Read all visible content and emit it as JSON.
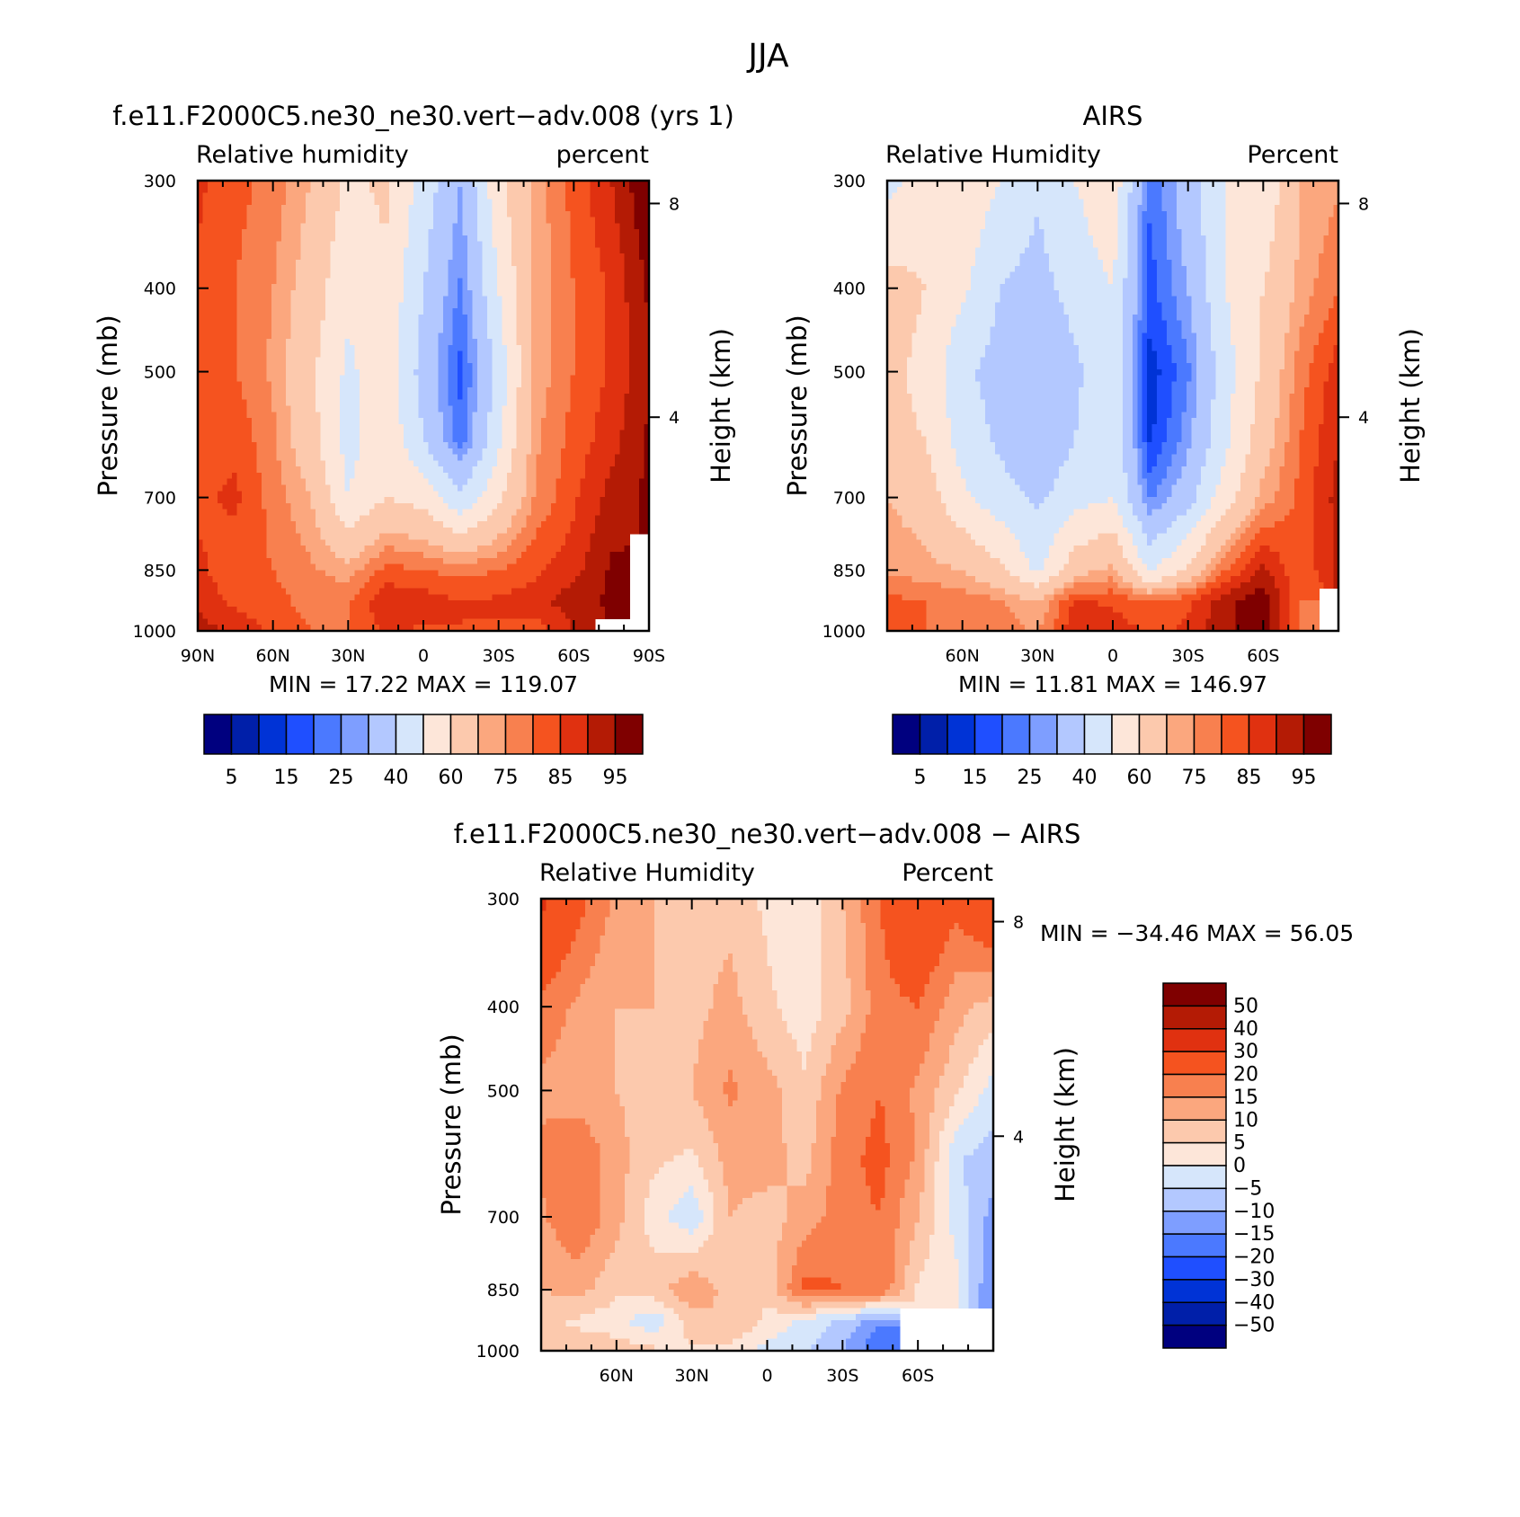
{
  "figure": {
    "title": "JJA"
  },
  "chart_data": [
    {
      "type": "heatmap",
      "title": "f.e11.F2000C5.ne30_ne30.vert−adv.008 (yrs 1)",
      "left_label": "Relative humidity",
      "right_label": "percent",
      "ylabel": "Pressure (mb)",
      "y2label": "Height (km)",
      "x_ticks": [
        "90N",
        "60N",
        "30N",
        "0",
        "30S",
        "60S",
        "90S"
      ],
      "y_ticks": [
        "300",
        "400",
        "500",
        "700",
        "850",
        "1000"
      ],
      "y2_ticks": [
        "8",
        "4"
      ],
      "stats": "MIN =   17.22   MAX = 119.07",
      "levels": [
        5,
        10,
        15,
        20,
        25,
        30,
        40,
        50,
        60,
        70,
        75,
        80,
        85,
        90,
        95
      ],
      "colorbar_labels": [
        "5",
        "15",
        "25",
        "40",
        "60",
        "75",
        "85",
        "95"
      ],
      "colorbar_orientation": "horizontal",
      "xlim": [
        90,
        -90
      ],
      "ylim": [
        1000,
        300
      ],
      "x": [
        90,
        75,
        60,
        45,
        30,
        15,
        0,
        -15,
        -30,
        -45,
        -60,
        -75,
        -90
      ],
      "y": [
        1000,
        925,
        850,
        700,
        600,
        500,
        400,
        300
      ],
      "z": [
        [
          93,
          88,
          84,
          80,
          80,
          86,
          84,
          85,
          84,
          82,
          90,
          -1,
          -1
        ],
        [
          88,
          84,
          82,
          78,
          80,
          89,
          88,
          85,
          86,
          88,
          93,
          96,
          -1
        ],
        [
          86,
          82,
          80,
          76,
          72,
          82,
          80,
          78,
          80,
          84,
          88,
          96,
          -1
        ],
        [
          84,
          86,
          78,
          70,
          50,
          60,
          56,
          42,
          58,
          76,
          84,
          92,
          96
        ],
        [
          82,
          84,
          76,
          64,
          46,
          58,
          40,
          22,
          48,
          74,
          82,
          88,
          96
        ],
        [
          82,
          80,
          74,
          62,
          48,
          56,
          36,
          18,
          44,
          72,
          80,
          86,
          94
        ],
        [
          84,
          80,
          75,
          66,
          52,
          58,
          40,
          24,
          50,
          72,
          80,
          86,
          96
        ],
        [
          86,
          82,
          78,
          70,
          58,
          62,
          46,
          30,
          58,
          72,
          82,
          90,
          100
        ]
      ]
    },
    {
      "type": "heatmap",
      "title": "AIRS",
      "left_label": "Relative Humidity",
      "right_label": "Percent",
      "ylabel": "Pressure (mb)",
      "y2label": "Height (km)",
      "x_ticks": [
        "60N",
        "30N",
        "0",
        "30S",
        "60S"
      ],
      "y_ticks": [
        "300",
        "400",
        "500",
        "700",
        "850",
        "1000"
      ],
      "y2_ticks": [
        "8",
        "4"
      ],
      "stats": "MIN =   11.81   MAX = 146.97",
      "levels": [
        5,
        10,
        15,
        20,
        25,
        30,
        40,
        50,
        60,
        70,
        75,
        80,
        85,
        90,
        95
      ],
      "colorbar_labels": [
        "5",
        "15",
        "25",
        "40",
        "60",
        "75",
        "85",
        "95"
      ],
      "colorbar_orientation": "horizontal",
      "xlim": [
        90,
        -90
      ],
      "ylim": [
        1000,
        300
      ],
      "x": [
        90,
        75,
        60,
        45,
        30,
        15,
        0,
        -15,
        -30,
        -45,
        -60,
        -75,
        -90
      ],
      "y": [
        1000,
        925,
        850,
        700,
        600,
        500,
        400,
        300
      ],
      "z": [
        [
          82,
          80,
          80,
          78,
          74,
          90,
          88,
          84,
          86,
          94,
          98,
          78,
          -1
        ],
        [
          82,
          80,
          78,
          76,
          70,
          86,
          84,
          80,
          84,
          94,
          98,
          80,
          -1
        ],
        [
          74,
          72,
          70,
          62,
          48,
          66,
          72,
          48,
          62,
          80,
          92,
          80,
          92
        ],
        [
          70,
          66,
          52,
          44,
          38,
          46,
          50,
          24,
          36,
          56,
          72,
          82,
          92
        ],
        [
          62,
          60,
          46,
          38,
          32,
          40,
          50,
          14,
          28,
          48,
          66,
          80,
          90
        ],
        [
          62,
          58,
          42,
          36,
          30,
          38,
          48,
          12,
          24,
          46,
          62,
          78,
          88
        ],
        [
          64,
          60,
          52,
          40,
          36,
          44,
          50,
          18,
          30,
          50,
          60,
          72,
          80
        ],
        [
          46,
          56,
          58,
          50,
          42,
          50,
          58,
          20,
          36,
          50,
          52,
          70,
          74
        ]
      ]
    },
    {
      "type": "heatmap",
      "title": "f.e11.F2000C5.ne30_ne30.vert−adv.008 − AIRS",
      "left_label": "Relative Humidity",
      "right_label": "Percent",
      "ylabel": "Pressure (mb)",
      "y2label": "Height (km)",
      "x_ticks": [
        "60N",
        "30N",
        "0",
        "30S",
        "60S"
      ],
      "y_ticks": [
        "300",
        "400",
        "500",
        "700",
        "850",
        "1000"
      ],
      "y2_ticks": [
        "8",
        "4"
      ],
      "stats": "MIN = −34.46   MAX =   56.05",
      "levels": [
        -50,
        -40,
        -30,
        -20,
        -15,
        -10,
        -5,
        0,
        5,
        10,
        15,
        20,
        30,
        40,
        50
      ],
      "colorbar_labels": [
        "50",
        "40",
        "30",
        "20",
        "15",
        "10",
        "5",
        "0",
        "−5",
        "−10",
        "−15",
        "−20",
        "−30",
        "−40",
        "−50"
      ],
      "colorbar_orientation": "vertical",
      "xlim": [
        90,
        -90
      ],
      "ylim": [
        1000,
        300
      ],
      "x": [
        90,
        75,
        60,
        45,
        30,
        15,
        0,
        -15,
        -30,
        -45,
        -60,
        -75,
        -90
      ],
      "y": [
        1000,
        925,
        850,
        700,
        600,
        500,
        400,
        300
      ],
      "z": [
        [
          8,
          8,
          8,
          6,
          4,
          4,
          -2,
          -4,
          -10,
          -20,
          -1,
          -1,
          -1
        ],
        [
          6,
          4,
          2,
          -4,
          8,
          10,
          4,
          -2,
          -6,
          -14,
          -1,
          -1,
          -1
        ],
        [
          10,
          12,
          6,
          8,
          14,
          8,
          6,
          22,
          20,
          20,
          4,
          2,
          -16
        ],
        [
          14,
          20,
          12,
          2,
          -4,
          10,
          8,
          12,
          18,
          20,
          10,
          -2,
          -12
        ],
        [
          16,
          20,
          12,
          6,
          4,
          12,
          12,
          8,
          18,
          22,
          14,
          -4,
          -8
        ],
        [
          14,
          12,
          10,
          8,
          10,
          16,
          12,
          6,
          16,
          20,
          14,
          6,
          -2
        ],
        [
          18,
          14,
          10,
          10,
          8,
          12,
          6,
          2,
          8,
          18,
          20,
          12,
          8
        ],
        [
          32,
          22,
          14,
          10,
          8,
          8,
          4,
          2,
          10,
          20,
          30,
          22,
          30
        ]
      ]
    }
  ],
  "colors": {
    "seq": [
      "#00007f",
      "#001fa9",
      "#0033d6",
      "#1f4fff",
      "#4b79ff",
      "#7e9eff",
      "#b3c8ff",
      "#d6e6fb",
      "#fde6d9",
      "#fcc9ad",
      "#fba77e",
      "#f8804f",
      "#f5531f",
      "#e03110",
      "#b41b05",
      "#7f0000"
    ]
  }
}
